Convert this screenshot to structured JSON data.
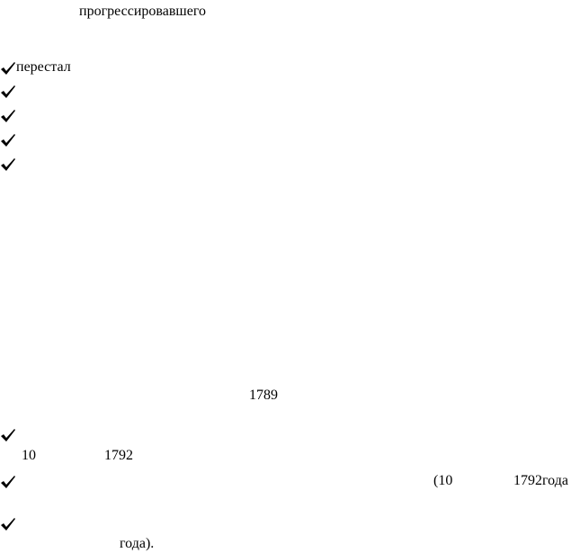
{
  "fragments": {
    "top_word": "прогрессировавшего",
    "stopped": "перестал",
    "year_1789": "1789",
    "day_10": "10",
    "year_1792": "1792",
    "paren_10": "(10",
    "year_1792_suffix": "1792года",
    "year_close": "года)."
  }
}
